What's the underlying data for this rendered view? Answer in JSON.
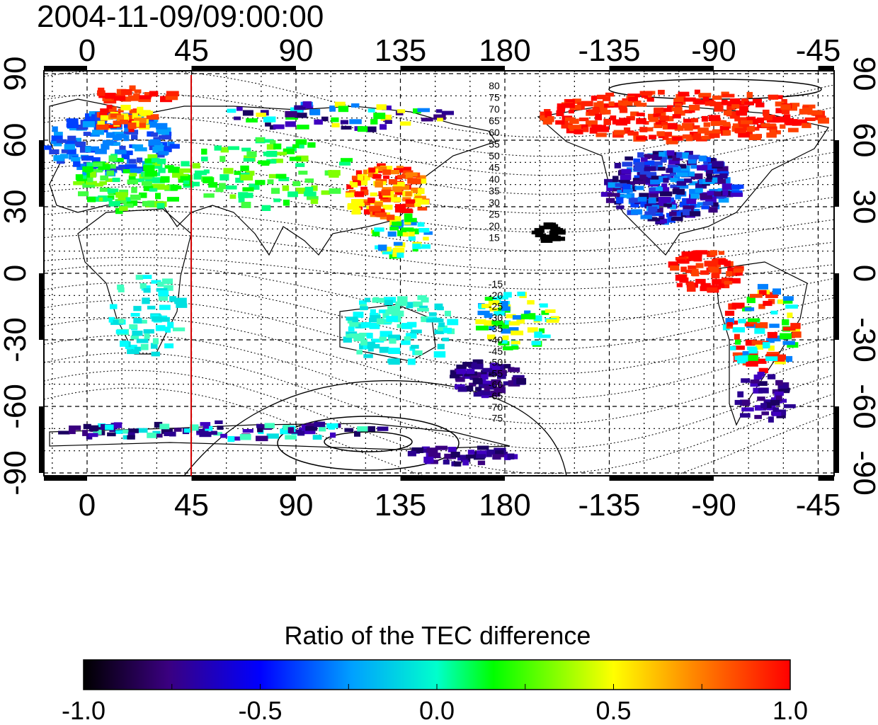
{
  "map": {
    "timestamp": "2004-11-09/09:00:00",
    "x_ticks_top": [
      "0",
      "45",
      "90",
      "135",
      "180",
      "-135",
      "-90",
      "-45"
    ],
    "x_ticks_bottom": [
      "0",
      "45",
      "90",
      "135",
      "180",
      "-135",
      "-90",
      "-45"
    ],
    "y_ticks_left": [
      "90",
      "60",
      "30",
      "0",
      "-30",
      "-60",
      "-90"
    ],
    "y_ticks_right": [
      "90",
      "60",
      "30",
      "0",
      "-30",
      "-60",
      "-90"
    ],
    "highlight_longitude": 45,
    "highlight_color": "#d40000",
    "contour_labels_north": [
      "80",
      "75",
      "70",
      "65",
      "60",
      "55",
      "50",
      "45",
      "40",
      "35",
      "30",
      "25",
      "20",
      "15"
    ],
    "contour_labels_south": [
      "-15",
      "-20",
      "-25",
      "-30",
      "-35",
      "-40",
      "-45",
      "-50",
      "-55",
      "-60",
      "-65",
      "-70",
      "-75"
    ]
  },
  "colorbar": {
    "title": "Ratio of the TEC difference",
    "ticks": [
      "-1.0",
      "-0.5",
      "0.0",
      "0.5",
      "1.0"
    ],
    "range": [
      -1.0,
      1.0
    ],
    "colors": [
      "#000000",
      "#3a0080",
      "#0000ff",
      "#00ffff",
      "#00ff00",
      "#ffff00",
      "#ff8000",
      "#ff0000"
    ]
  }
}
